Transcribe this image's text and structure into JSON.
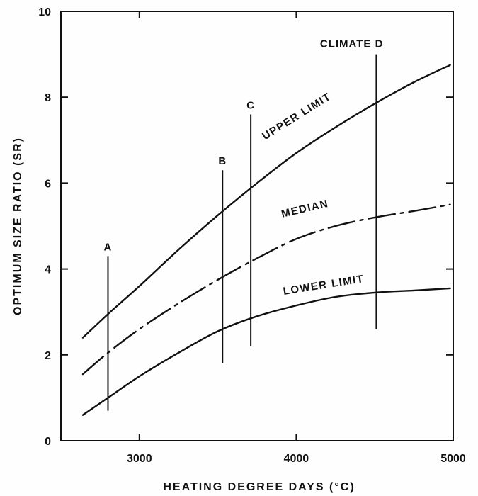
{
  "chart_data": {
    "type": "line",
    "xlabel": "HEATING DEGREE DAYS (°C)",
    "ylabel": "OPTIMUM SIZE RATIO (SR)",
    "xlim": [
      2500,
      5000
    ],
    "ylim": [
      0,
      10
    ],
    "x_ticks": [
      3000,
      4000,
      5000
    ],
    "y_ticks": [
      0,
      2,
      4,
      6,
      8,
      10
    ],
    "grid": false,
    "series": [
      {
        "name": "UPPER LIMIT",
        "style": "solid",
        "points": [
          [
            2640,
            2.4
          ],
          [
            2800,
            2.95
          ],
          [
            3000,
            3.6
          ],
          [
            3250,
            4.45
          ],
          [
            3500,
            5.25
          ],
          [
            3750,
            6.0
          ],
          [
            4000,
            6.7
          ],
          [
            4250,
            7.3
          ],
          [
            4500,
            7.85
          ],
          [
            4750,
            8.35
          ],
          [
            4980,
            8.75
          ]
        ]
      },
      {
        "name": "MEDIAN",
        "style": "dash-dot",
        "points": [
          [
            2640,
            1.55
          ],
          [
            2800,
            2.05
          ],
          [
            3000,
            2.6
          ],
          [
            3250,
            3.2
          ],
          [
            3500,
            3.75
          ],
          [
            3750,
            4.25
          ],
          [
            4000,
            4.7
          ],
          [
            4250,
            5.0
          ],
          [
            4500,
            5.2
          ],
          [
            4750,
            5.35
          ],
          [
            4980,
            5.5
          ]
        ]
      },
      {
        "name": "LOWER LIMIT",
        "style": "solid",
        "points": [
          [
            2640,
            0.6
          ],
          [
            2800,
            1.0
          ],
          [
            3000,
            1.5
          ],
          [
            3250,
            2.05
          ],
          [
            3500,
            2.55
          ],
          [
            3750,
            2.9
          ],
          [
            4000,
            3.15
          ],
          [
            4250,
            3.35
          ],
          [
            4500,
            3.45
          ],
          [
            4750,
            3.5
          ],
          [
            4980,
            3.55
          ]
        ]
      }
    ],
    "markers": [
      {
        "label": "A",
        "x": 2800,
        "y_range": [
          0.7,
          4.3
        ]
      },
      {
        "label": "B",
        "x": 3530,
        "y_range": [
          1.8,
          6.3
        ]
      },
      {
        "label": "C",
        "x": 3710,
        "y_range": [
          2.2,
          7.6
        ]
      },
      {
        "label": "CLIMATE D",
        "x": 4510,
        "y_range": [
          2.6,
          9.0
        ]
      }
    ]
  }
}
